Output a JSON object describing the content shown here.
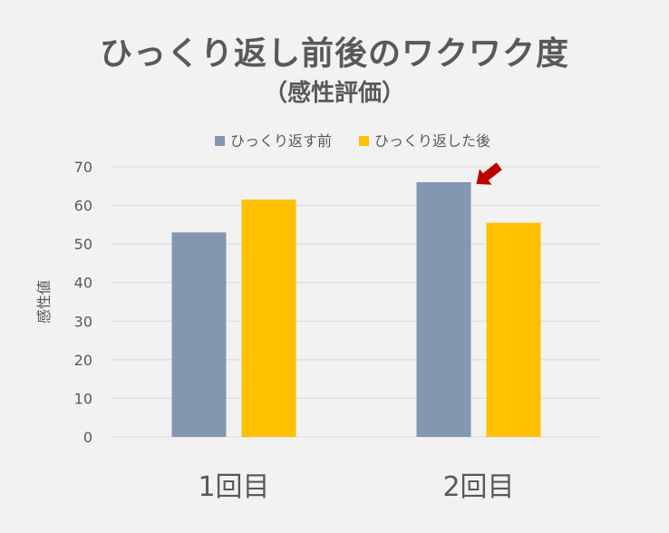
{
  "chart_data": {
    "type": "bar",
    "title": "ひっくり返し前後のワクワク度",
    "subtitle": "（感性評価）",
    "ylabel": "感性値",
    "xlabel": "",
    "ylim": [
      0,
      70
    ],
    "yticks": [
      0,
      10,
      20,
      30,
      40,
      50,
      60,
      70
    ],
    "grid": true,
    "legend_position": "top",
    "categories": [
      "1回目",
      "2回目"
    ],
    "series": [
      {
        "name": "ひっくり返す前",
        "color": "#8497b0",
        "values": [
          53,
          66
        ]
      },
      {
        "name": "ひっくり返した後",
        "color": "#ffc000",
        "values": [
          61.5,
          55.5
        ]
      }
    ],
    "annotation": {
      "type": "arrow",
      "color": "#c00000",
      "target_category": "2回目",
      "target_series": "ひっくり返す前"
    }
  }
}
